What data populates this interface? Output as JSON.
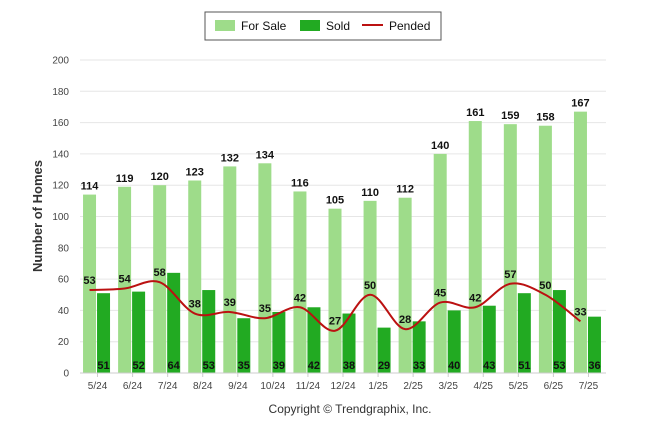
{
  "chart_data": {
    "type": "bar",
    "categories": [
      "5/24",
      "6/24",
      "7/24",
      "8/24",
      "9/24",
      "10/24",
      "11/24",
      "12/24",
      "1/25",
      "2/25",
      "3/25",
      "4/25",
      "5/25",
      "6/25",
      "7/25"
    ],
    "series": [
      {
        "name": "For Sale",
        "type": "bar",
        "color": "#9edc8a",
        "values": [
          114,
          119,
          120,
          123,
          132,
          134,
          116,
          105,
          110,
          112,
          140,
          161,
          159,
          158,
          167
        ]
      },
      {
        "name": "Sold",
        "type": "bar",
        "color": "#22aa22",
        "values": [
          51,
          52,
          64,
          53,
          35,
          39,
          42,
          38,
          29,
          33,
          40,
          43,
          51,
          53,
          36
        ]
      },
      {
        "name": "Pended",
        "type": "line",
        "color": "#bb1111",
        "values": [
          53,
          54,
          58,
          38,
          39,
          35,
          42,
          27,
          50,
          28,
          45,
          42,
          57,
          50,
          33
        ]
      }
    ],
    "ylabel": "Number of Homes",
    "ylim": [
      0,
      200
    ],
    "yticks": [
      0,
      20,
      40,
      60,
      80,
      100,
      120,
      140,
      160,
      180,
      200
    ],
    "grid": true,
    "legend_position": "top-center",
    "footer": "Copyright © Trendgraphix, Inc."
  }
}
